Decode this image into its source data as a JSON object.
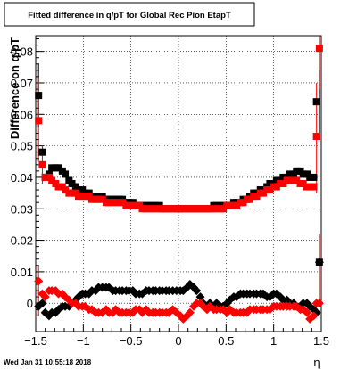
{
  "chart_data": {
    "type": "scatter",
    "title": "Fitted difference in q/pT for Global Rec Pion EtapT",
    "xlabel": "η",
    "ylabel": "Difference on q/pT",
    "xlim": [
      -1.5,
      1.5
    ],
    "ylim": [
      -0.009,
      0.085
    ],
    "x_ticks": [
      -1.5,
      -1.0,
      -0.5,
      0.0,
      0.5,
      1.0,
      1.5
    ],
    "x_tick_labels": [
      "−1.5",
      "−1",
      "−0.5",
      "0",
      "0.5",
      "1",
      "1.5"
    ],
    "y_ticks": [
      0.0,
      0.01,
      0.02,
      0.03,
      0.04,
      0.05,
      0.06,
      0.07,
      0.08
    ],
    "y_tick_labels": [
      "0",
      "0.01",
      "0.02",
      "0.03",
      "0.04",
      "0.05",
      "0.06",
      "0.07",
      "0.08"
    ],
    "grid": true,
    "footer": "Wed Jan 31 10:55:18 2018",
    "series": [
      {
        "color": "#000000",
        "marker": "square",
        "x": [
          -1.47,
          -1.43,
          -1.4,
          -1.36,
          -1.33,
          -1.29,
          -1.26,
          -1.22,
          -1.19,
          -1.15,
          -1.12,
          -1.08,
          -1.05,
          -1.01,
          -0.98,
          -0.94,
          -0.91,
          -0.87,
          -0.84,
          -0.8,
          -0.76,
          -0.73,
          -0.69,
          -0.66,
          -0.62,
          -0.59,
          -0.55,
          -0.52,
          -0.48,
          -0.45,
          -0.41,
          -0.38,
          -0.34,
          -0.31,
          -0.27,
          -0.24,
          -0.2,
          -0.17,
          -0.13,
          -0.1,
          -0.06,
          -0.02,
          0.02,
          0.05,
          0.09,
          0.12,
          0.16,
          0.19,
          0.23,
          0.26,
          0.3,
          0.33,
          0.37,
          0.4,
          0.44,
          0.47,
          0.51,
          0.54,
          0.58,
          0.61,
          0.65,
          0.68,
          0.72,
          0.75,
          0.79,
          0.82,
          0.86,
          0.89,
          0.93,
          0.96,
          1.0,
          1.03,
          1.07,
          1.1,
          1.14,
          1.17,
          1.21,
          1.24,
          1.28,
          1.31,
          1.35,
          1.38,
          1.42,
          1.45,
          1.48
        ],
        "y": [
          0.066,
          0.048,
          0.04,
          0.041,
          0.043,
          0.043,
          0.043,
          0.042,
          0.041,
          0.039,
          0.038,
          0.037,
          0.036,
          0.036,
          0.035,
          0.035,
          0.034,
          0.034,
          0.034,
          0.034,
          0.033,
          0.033,
          0.033,
          0.033,
          0.033,
          0.033,
          0.032,
          0.032,
          0.032,
          0.031,
          0.031,
          0.031,
          0.031,
          0.031,
          0.031,
          0.031,
          0.031,
          0.03,
          0.03,
          0.03,
          0.03,
          0.03,
          0.03,
          0.03,
          0.03,
          0.03,
          0.03,
          0.03,
          0.03,
          0.03,
          0.03,
          0.03,
          0.031,
          0.031,
          0.031,
          0.031,
          0.031,
          0.031,
          0.032,
          0.032,
          0.032,
          0.033,
          0.033,
          0.034,
          0.035,
          0.035,
          0.036,
          0.036,
          0.037,
          0.038,
          0.038,
          0.039,
          0.039,
          0.04,
          0.04,
          0.041,
          0.041,
          0.042,
          0.042,
          0.041,
          0.041,
          0.04,
          0.04,
          0.064,
          0.013
        ]
      },
      {
        "color": "#ff0000",
        "marker": "square",
        "x": [
          -1.47,
          -1.43,
          -1.4,
          -1.36,
          -1.33,
          -1.29,
          -1.26,
          -1.22,
          -1.19,
          -1.15,
          -1.12,
          -1.08,
          -1.05,
          -1.01,
          -0.98,
          -0.94,
          -0.91,
          -0.87,
          -0.84,
          -0.8,
          -0.76,
          -0.73,
          -0.69,
          -0.66,
          -0.62,
          -0.59,
          -0.55,
          -0.52,
          -0.48,
          -0.45,
          -0.41,
          -0.38,
          -0.34,
          -0.31,
          -0.27,
          -0.24,
          -0.2,
          -0.17,
          -0.13,
          -0.1,
          -0.06,
          -0.02,
          0.02,
          0.05,
          0.09,
          0.12,
          0.16,
          0.19,
          0.23,
          0.26,
          0.3,
          0.33,
          0.37,
          0.4,
          0.44,
          0.47,
          0.51,
          0.54,
          0.58,
          0.61,
          0.65,
          0.68,
          0.72,
          0.75,
          0.79,
          0.82,
          0.86,
          0.89,
          0.93,
          0.96,
          1.0,
          1.03,
          1.07,
          1.1,
          1.14,
          1.17,
          1.21,
          1.24,
          1.28,
          1.31,
          1.35,
          1.38,
          1.42,
          1.45,
          1.48
        ],
        "y": [
          0.058,
          0.044,
          0.04,
          0.04,
          0.039,
          0.038,
          0.037,
          0.037,
          0.036,
          0.035,
          0.035,
          0.035,
          0.034,
          0.034,
          0.034,
          0.034,
          0.033,
          0.033,
          0.033,
          0.033,
          0.032,
          0.032,
          0.032,
          0.032,
          0.032,
          0.032,
          0.031,
          0.031,
          0.031,
          0.031,
          0.031,
          0.03,
          0.03,
          0.03,
          0.03,
          0.03,
          0.03,
          0.03,
          0.03,
          0.03,
          0.03,
          0.03,
          0.03,
          0.03,
          0.03,
          0.03,
          0.03,
          0.03,
          0.03,
          0.03,
          0.03,
          0.03,
          0.03,
          0.03,
          0.03,
          0.03,
          0.031,
          0.031,
          0.031,
          0.031,
          0.032,
          0.032,
          0.033,
          0.033,
          0.034,
          0.034,
          0.035,
          0.035,
          0.036,
          0.036,
          0.037,
          0.037,
          0.038,
          0.038,
          0.039,
          0.039,
          0.039,
          0.039,
          0.038,
          0.038,
          0.037,
          0.037,
          0.037,
          0.053,
          0.081
        ]
      },
      {
        "color": "#000000",
        "marker": "diamond",
        "x": [
          -1.47,
          -1.43,
          -1.4,
          -1.36,
          -1.33,
          -1.29,
          -1.26,
          -1.22,
          -1.19,
          -1.15,
          -1.12,
          -1.08,
          -1.05,
          -1.01,
          -0.98,
          -0.94,
          -0.91,
          -0.87,
          -0.84,
          -0.8,
          -0.76,
          -0.73,
          -0.69,
          -0.66,
          -0.62,
          -0.59,
          -0.55,
          -0.52,
          -0.48,
          -0.45,
          -0.41,
          -0.38,
          -0.34,
          -0.31,
          -0.27,
          -0.24,
          -0.2,
          -0.17,
          -0.13,
          -0.1,
          -0.06,
          -0.02,
          0.02,
          0.05,
          0.09,
          0.12,
          0.16,
          0.19,
          0.23,
          0.26,
          0.3,
          0.33,
          0.37,
          0.4,
          0.44,
          0.47,
          0.51,
          0.54,
          0.58,
          0.61,
          0.65,
          0.68,
          0.72,
          0.75,
          0.79,
          0.82,
          0.86,
          0.89,
          0.93,
          0.96,
          1.0,
          1.03,
          1.07,
          1.1,
          1.14,
          1.17,
          1.21,
          1.24,
          1.28,
          1.31,
          1.35,
          1.38,
          1.42,
          1.45,
          1.48
        ],
        "y": [
          -0.001,
          0.0,
          -0.003,
          -0.004,
          -0.003,
          -0.003,
          -0.002,
          -0.001,
          -0.001,
          -0.001,
          0.0,
          0.001,
          0.002,
          0.003,
          0.003,
          0.003,
          0.004,
          0.004,
          0.005,
          0.005,
          0.005,
          0.005,
          0.004,
          0.004,
          0.004,
          0.004,
          0.004,
          0.004,
          0.004,
          0.003,
          0.003,
          0.003,
          0.004,
          0.004,
          0.004,
          0.004,
          0.004,
          0.004,
          0.004,
          0.004,
          0.004,
          0.004,
          0.004,
          0.004,
          0.005,
          0.006,
          0.005,
          0.004,
          0.002,
          0.0,
          -0.001,
          0.0,
          -0.001,
          0.0,
          -0.001,
          -0.001,
          0.0,
          0.001,
          0.002,
          0.002,
          0.003,
          0.003,
          0.003,
          0.003,
          0.003,
          0.003,
          0.003,
          0.003,
          0.002,
          0.002,
          0.003,
          0.003,
          0.002,
          0.001,
          0.001,
          0.0,
          0.0,
          -0.001,
          -0.001,
          0.0,
          0.0,
          -0.001,
          -0.002,
          -0.003,
          0.013
        ]
      },
      {
        "color": "#ff0000",
        "marker": "diamond",
        "x": [
          -1.47,
          -1.43,
          -1.4,
          -1.36,
          -1.33,
          -1.29,
          -1.26,
          -1.22,
          -1.19,
          -1.15,
          -1.12,
          -1.08,
          -1.05,
          -1.01,
          -0.98,
          -0.94,
          -0.91,
          -0.87,
          -0.84,
          -0.8,
          -0.76,
          -0.73,
          -0.69,
          -0.66,
          -0.62,
          -0.59,
          -0.55,
          -0.52,
          -0.48,
          -0.45,
          -0.41,
          -0.38,
          -0.34,
          -0.31,
          -0.27,
          -0.24,
          -0.2,
          -0.17,
          -0.13,
          -0.1,
          -0.06,
          -0.02,
          0.02,
          0.05,
          0.09,
          0.12,
          0.16,
          0.19,
          0.23,
          0.26,
          0.3,
          0.33,
          0.37,
          0.4,
          0.44,
          0.47,
          0.51,
          0.54,
          0.58,
          0.61,
          0.65,
          0.68,
          0.72,
          0.75,
          0.79,
          0.82,
          0.86,
          0.89,
          0.93,
          0.96,
          1.0,
          1.03,
          1.07,
          1.1,
          1.14,
          1.17,
          1.21,
          1.24,
          1.28,
          1.31,
          1.35,
          1.38,
          1.42,
          1.45,
          1.48
        ],
        "y": [
          0.007,
          0.003,
          0.002,
          0.004,
          0.004,
          0.004,
          0.003,
          0.003,
          0.002,
          0.001,
          0.0,
          0.0,
          -0.001,
          -0.001,
          -0.001,
          -0.002,
          -0.002,
          -0.003,
          -0.003,
          -0.003,
          -0.002,
          -0.003,
          -0.003,
          -0.002,
          -0.003,
          -0.003,
          -0.003,
          -0.003,
          -0.003,
          -0.002,
          -0.002,
          -0.003,
          -0.002,
          -0.003,
          -0.003,
          -0.003,
          -0.003,
          -0.003,
          -0.003,
          -0.003,
          -0.002,
          -0.003,
          -0.004,
          -0.005,
          -0.004,
          -0.003,
          -0.001,
          0.0,
          0.0,
          -0.001,
          -0.002,
          -0.001,
          -0.002,
          -0.002,
          -0.002,
          -0.002,
          -0.003,
          -0.002,
          -0.003,
          -0.003,
          -0.003,
          -0.003,
          -0.003,
          -0.002,
          -0.002,
          -0.002,
          -0.002,
          -0.002,
          -0.002,
          -0.002,
          -0.001,
          -0.001,
          -0.001,
          -0.001,
          -0.001,
          -0.001,
          -0.001,
          -0.001,
          -0.002,
          -0.002,
          -0.003,
          -0.005,
          -0.004,
          0.0,
          0.0
        ]
      }
    ]
  }
}
